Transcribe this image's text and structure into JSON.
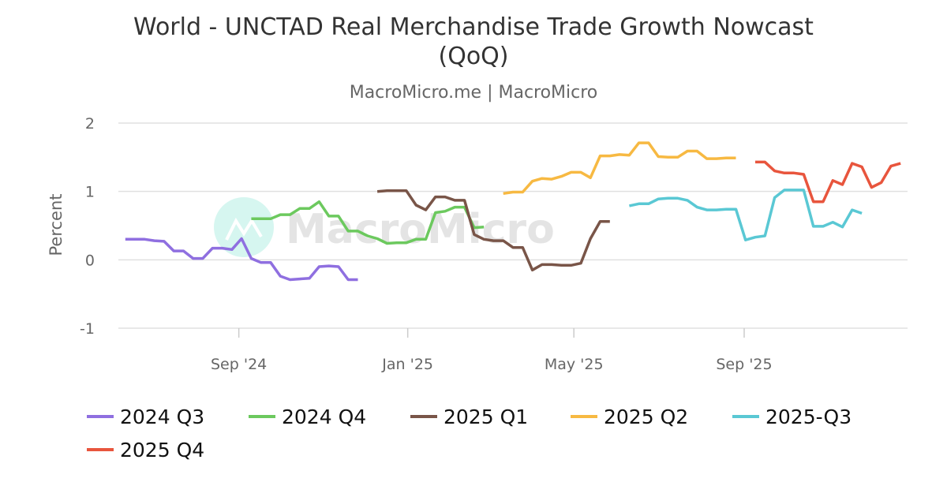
{
  "chart_data": {
    "type": "line",
    "title": "World - UNCTAD Real Merchandise Trade Growth Nowcast",
    "title_line2": "(QoQ)",
    "subtitle": "MacroMicro.me | MacroMicro",
    "watermark": "MacroMicro",
    "xlabel": "",
    "ylabel": "Percent",
    "ylim": [
      -1,
      2
    ],
    "yticks": [
      2,
      1,
      0,
      -1
    ],
    "xlim": [
      "2024-06-06",
      "2025-12-28"
    ],
    "xticks": [
      {
        "date": "2024-09-01",
        "label": "Sep '24"
      },
      {
        "date": "2025-01-01",
        "label": "Jan '25"
      },
      {
        "date": "2025-05-01",
        "label": "May '25"
      },
      {
        "date": "2025-09-01",
        "label": "Sep '25"
      }
    ],
    "grid": true,
    "legend_position": "bottom",
    "series": [
      {
        "name": "2024 Q3",
        "color": "#8f6fe0",
        "x": [
          "2024-06-11",
          "2024-06-18",
          "2024-06-25",
          "2024-07-02",
          "2024-07-09",
          "2024-07-16",
          "2024-07-23",
          "2024-07-30",
          "2024-08-06",
          "2024-08-13",
          "2024-08-20",
          "2024-08-27",
          "2024-09-03",
          "2024-09-10",
          "2024-09-17",
          "2024-09-24",
          "2024-10-01",
          "2024-10-08",
          "2024-10-15",
          "2024-10-22",
          "2024-10-29",
          "2024-11-05",
          "2024-11-12",
          "2024-11-19",
          "2024-11-26"
        ],
        "values": [
          0.3,
          0.3,
          0.3,
          0.28,
          0.27,
          0.13,
          0.13,
          0.02,
          0.02,
          0.17,
          0.17,
          0.15,
          0.31,
          0.02,
          -0.04,
          -0.04,
          -0.24,
          -0.29,
          -0.28,
          -0.27,
          -0.1,
          -0.09,
          -0.1,
          -0.29,
          -0.29
        ]
      },
      {
        "name": "2024 Q4",
        "color": "#6cc95e",
        "x": [
          "2024-09-10",
          "2024-09-17",
          "2024-09-24",
          "2024-10-01",
          "2024-10-08",
          "2024-10-15",
          "2024-10-22",
          "2024-10-29",
          "2024-11-05",
          "2024-11-12",
          "2024-11-19",
          "2024-11-26",
          "2024-12-03",
          "2024-12-10",
          "2024-12-17",
          "2024-12-24",
          "2024-12-31",
          "2025-01-07",
          "2025-01-14",
          "2025-01-21",
          "2025-01-28",
          "2025-02-04",
          "2025-02-11",
          "2025-02-18",
          "2025-02-25"
        ],
        "values": [
          0.6,
          0.6,
          0.6,
          0.66,
          0.66,
          0.75,
          0.75,
          0.85,
          0.64,
          0.64,
          0.42,
          0.42,
          0.35,
          0.31,
          0.24,
          0.25,
          0.25,
          0.3,
          0.3,
          0.69,
          0.71,
          0.77,
          0.77,
          0.47,
          0.48
        ]
      },
      {
        "name": "2025 Q1",
        "color": "#795548",
        "x": [
          "2024-12-10",
          "2024-12-17",
          "2024-12-24",
          "2024-12-31",
          "2025-01-07",
          "2025-01-14",
          "2025-01-21",
          "2025-01-28",
          "2025-02-04",
          "2025-02-11",
          "2025-02-18",
          "2025-02-25",
          "2025-03-04",
          "2025-03-11",
          "2025-03-18",
          "2025-03-25",
          "2025-04-01",
          "2025-04-08",
          "2025-04-15",
          "2025-04-22",
          "2025-04-29",
          "2025-05-06",
          "2025-05-13",
          "2025-05-20",
          "2025-05-27"
        ],
        "values": [
          1.0,
          1.01,
          1.01,
          1.01,
          0.8,
          0.73,
          0.92,
          0.92,
          0.87,
          0.87,
          0.37,
          0.3,
          0.28,
          0.28,
          0.18,
          0.18,
          -0.15,
          -0.07,
          -0.07,
          -0.08,
          -0.08,
          -0.05,
          0.31,
          0.56,
          0.56
        ]
      },
      {
        "name": "2025 Q2",
        "color": "#f7b942",
        "x": [
          "2025-03-11",
          "2025-03-18",
          "2025-03-25",
          "2025-04-01",
          "2025-04-08",
          "2025-04-15",
          "2025-04-22",
          "2025-04-29",
          "2025-05-06",
          "2025-05-13",
          "2025-05-20",
          "2025-05-27",
          "2025-06-03",
          "2025-06-10",
          "2025-06-17",
          "2025-06-24",
          "2025-07-01",
          "2025-07-08",
          "2025-07-15",
          "2025-07-22",
          "2025-07-29",
          "2025-08-05",
          "2025-08-12",
          "2025-08-19",
          "2025-08-26"
        ],
        "values": [
          0.97,
          0.99,
          0.99,
          1.15,
          1.19,
          1.18,
          1.22,
          1.28,
          1.28,
          1.2,
          1.52,
          1.52,
          1.54,
          1.53,
          1.71,
          1.71,
          1.51,
          1.5,
          1.5,
          1.59,
          1.59,
          1.48,
          1.48,
          1.49,
          1.49
        ]
      },
      {
        "name": "2025-Q3",
        "color": "#5ac8d4",
        "x": [
          "2025-06-10",
          "2025-06-17",
          "2025-06-24",
          "2025-07-01",
          "2025-07-08",
          "2025-07-15",
          "2025-07-22",
          "2025-07-29",
          "2025-08-05",
          "2025-08-12",
          "2025-08-19",
          "2025-08-26",
          "2025-09-02",
          "2025-09-09",
          "2025-09-16",
          "2025-09-23",
          "2025-09-30",
          "2025-10-07",
          "2025-10-14",
          "2025-10-21",
          "2025-10-28",
          "2025-11-04",
          "2025-11-11",
          "2025-11-18",
          "2025-11-25"
        ],
        "values": [
          0.79,
          0.82,
          0.82,
          0.89,
          0.9,
          0.9,
          0.87,
          0.77,
          0.73,
          0.73,
          0.74,
          0.74,
          0.29,
          0.33,
          0.35,
          0.91,
          1.02,
          1.02,
          1.02,
          0.49,
          0.49,
          0.55,
          0.48,
          0.73,
          0.68
        ]
      },
      {
        "name": "2025 Q4",
        "color": "#e8553d",
        "x": [
          "2025-09-09",
          "2025-09-16",
          "2025-09-23",
          "2025-09-30",
          "2025-10-07",
          "2025-10-14",
          "2025-10-21",
          "2025-10-28",
          "2025-11-04",
          "2025-11-11",
          "2025-11-18",
          "2025-11-25",
          "2025-12-02",
          "2025-12-09",
          "2025-12-16",
          "2025-12-23"
        ],
        "values": [
          1.43,
          1.43,
          1.3,
          1.27,
          1.27,
          1.25,
          0.85,
          0.85,
          1.16,
          1.1,
          1.41,
          1.36,
          1.06,
          1.13,
          1.37,
          1.41
        ]
      }
    ]
  }
}
